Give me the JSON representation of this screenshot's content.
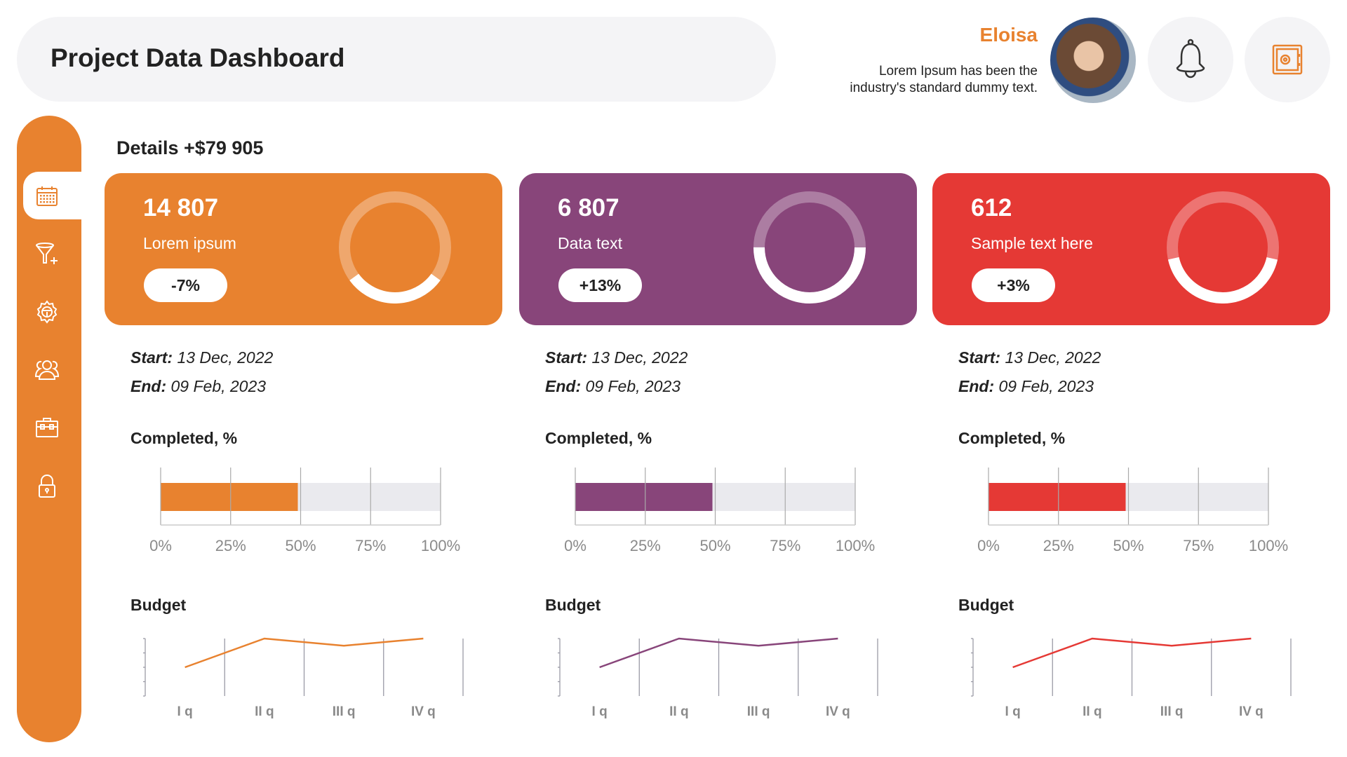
{
  "header": {
    "title": "Project Data Dashboard"
  },
  "user": {
    "name": "Eloisa",
    "description_line1": "Lorem Ipsum has been the",
    "description_line2": "industry's standard dummy text.",
    "avatar_icon": "user-photo"
  },
  "header_buttons": [
    {
      "icon": "bell-icon"
    },
    {
      "icon": "safe-icon"
    }
  ],
  "sidebar": {
    "items": [
      {
        "icon": "calendar-icon",
        "active": true
      },
      {
        "icon": "funnel-add-icon"
      },
      {
        "icon": "gear-wheel-icon"
      },
      {
        "icon": "users-icon"
      },
      {
        "icon": "toolbox-icon"
      },
      {
        "icon": "lock-icon"
      }
    ]
  },
  "details_title": "Details +$79 905",
  "colors": {
    "orange": "#E8822F",
    "purple": "#88457A",
    "red": "#E53935",
    "panel": "#F4F4F6",
    "track": "#EAEAEE"
  },
  "cards": [
    {
      "value": "14 807",
      "label": "Lorem ipsum",
      "change": "-7%",
      "color": "#E8822F",
      "donut_percent": 30,
      "start_label": "Start:",
      "start": "13 Dec, 2022",
      "end_label": "End:",
      "end": "09 Feb, 2023"
    },
    {
      "value": "6 807",
      "label": "Data text",
      "change": "+13%",
      "color": "#88457A",
      "donut_percent": 50,
      "start_label": "Start:",
      "start": "13 Dec, 2022",
      "end_label": "End:",
      "end": "09 Feb, 2023"
    },
    {
      "value": "612",
      "label": "Sample text here",
      "change": "+3%",
      "color": "#E53935",
      "donut_percent": 43,
      "start_label": "Start:",
      "start": "13 Dec, 2022",
      "end_label": "End:",
      "end": "09 Feb, 2023"
    }
  ],
  "chart_data": [
    {
      "type": "bar",
      "title": "Completed, %",
      "orientation": "horizontal",
      "values": [
        49
      ],
      "xlim": [
        0,
        100
      ],
      "tick_labels": [
        "0%",
        "25%",
        "50%",
        "75%",
        "100%"
      ],
      "grid": true,
      "color": "#E8822F"
    },
    {
      "type": "bar",
      "title": "Completed, %",
      "orientation": "horizontal",
      "values": [
        49
      ],
      "xlim": [
        0,
        100
      ],
      "tick_labels": [
        "0%",
        "25%",
        "50%",
        "75%",
        "100%"
      ],
      "grid": true,
      "color": "#88457A"
    },
    {
      "type": "bar",
      "title": "Completed, %",
      "orientation": "horizontal",
      "values": [
        49
      ],
      "xlim": [
        0,
        100
      ],
      "tick_labels": [
        "0%",
        "25%",
        "50%",
        "75%",
        "100%"
      ],
      "grid": true,
      "color": "#E53935"
    },
    {
      "type": "line",
      "title": "Budget",
      "categories": [
        "I q",
        "II q",
        "III q",
        "IV q"
      ],
      "values": [
        2,
        4,
        3.5,
        4
      ],
      "ylim": [
        0,
        4
      ],
      "grid": true,
      "color": "#E8822F"
    },
    {
      "type": "line",
      "title": "Budget",
      "categories": [
        "I q",
        "II q",
        "III q",
        "IV q"
      ],
      "values": [
        2,
        4,
        3.5,
        4
      ],
      "ylim": [
        0,
        4
      ],
      "grid": true,
      "color": "#88457A"
    },
    {
      "type": "line",
      "title": "Budget",
      "categories": [
        "I q",
        "II q",
        "III q",
        "IV q"
      ],
      "values": [
        2,
        4,
        3.5,
        4
      ],
      "ylim": [
        0,
        4
      ],
      "grid": true,
      "color": "#E53935"
    }
  ]
}
